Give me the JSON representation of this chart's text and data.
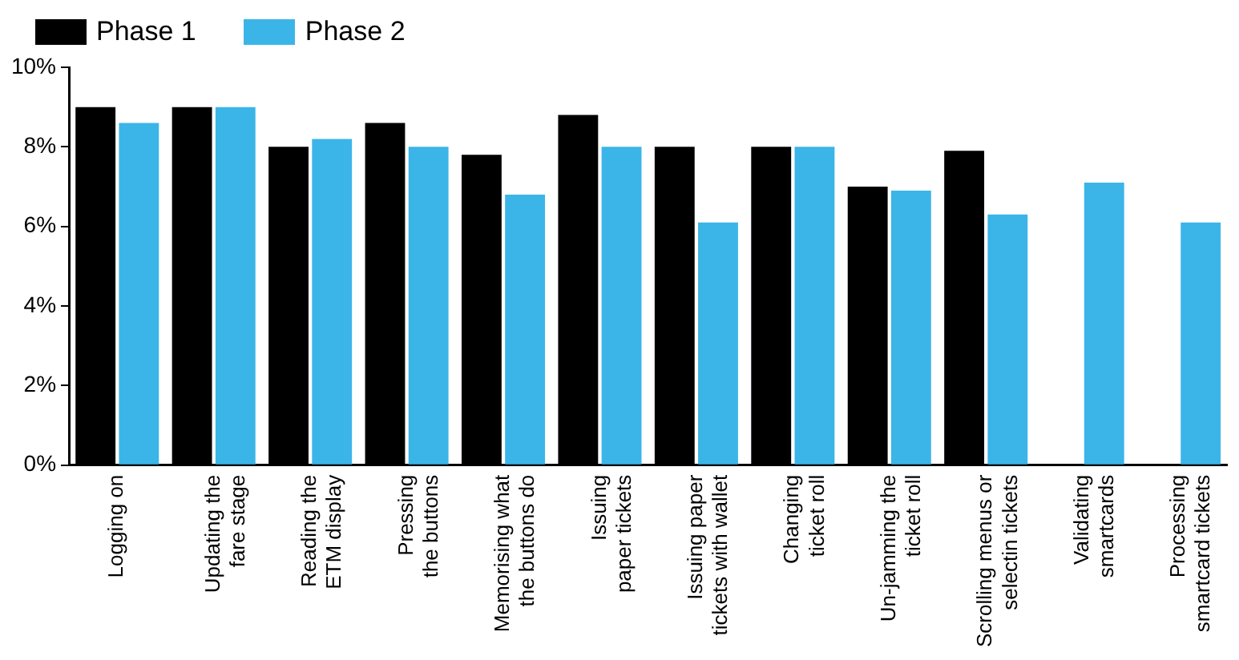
{
  "chart_data": {
    "type": "bar",
    "categories": [
      "Logging on",
      "Updating the fare stage",
      "Reading the ETM display",
      "Pressing the buttons",
      "Memorising what the buttons do",
      "Issuing paper tickets",
      "Issuing paper tickets with wallet",
      "Changing ticket roll",
      "Un-jamming the ticket roll",
      "Scrolling menus or selectin tickets",
      "Validating smartcards",
      "Processing smartcard tickets"
    ],
    "series": [
      {
        "name": "Phase 1",
        "color": "#000000",
        "values": [
          9.0,
          9.0,
          8.0,
          8.6,
          7.8,
          8.8,
          8.0,
          8.0,
          7.0,
          7.9,
          0,
          0
        ]
      },
      {
        "name": "Phase 2",
        "color": "#3bb5e8",
        "values": [
          8.6,
          9.0,
          8.2,
          8.0,
          6.8,
          8.0,
          6.1,
          8.0,
          6.9,
          6.3,
          7.1,
          6.1
        ]
      }
    ],
    "ylim": [
      0,
      10
    ],
    "yticks": [
      {
        "value": 0,
        "label": "0%"
      },
      {
        "value": 2,
        "label": "2%"
      },
      {
        "value": 4,
        "label": "4%"
      },
      {
        "value": 6,
        "label": "6%"
      },
      {
        "value": 8,
        "label": "8%"
      },
      {
        "value": 10,
        "label": "10%"
      }
    ],
    "grid": false,
    "legend": "top left"
  }
}
